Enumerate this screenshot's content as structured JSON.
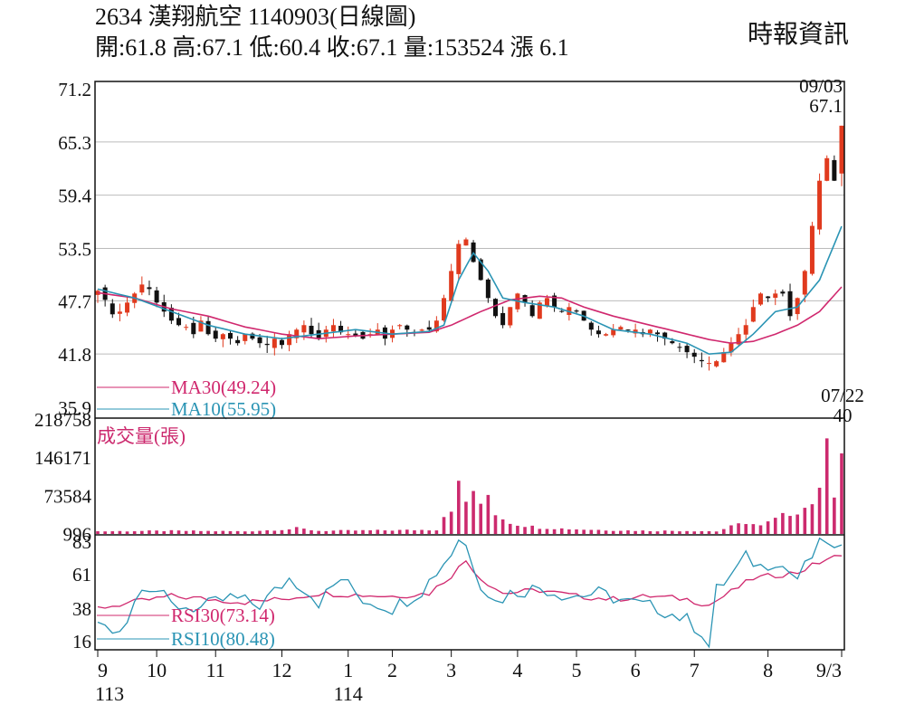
{
  "header": {
    "code": "2634",
    "name": "漢翔航空",
    "date": "1140903",
    "chart_kind": "(日線圖)",
    "ohlc_line": "開:61.8 高:67.1 低:60.4 收:67.1 量:153524 漲 6.1",
    "source": "時報資訊"
  },
  "colors": {
    "up": "#e03a1e",
    "down": "#111111",
    "ma30": "#d0286e",
    "ma10": "#2a94b4",
    "volume": "#cc2a6e",
    "rsi30": "#d0286e",
    "rsi10": "#2a94b4",
    "grid": "#bbbbbb"
  },
  "chart_data": [
    {
      "type": "candlestick",
      "panel": "price",
      "y_ticks": [
        "71.2",
        "65.3",
        "59.4",
        "53.5",
        "47.7",
        "41.8",
        "35.9"
      ],
      "ylim": [
        35.9,
        71.2
      ],
      "annotations": [
        {
          "date_label": "09/03",
          "value_label": "67.1",
          "x": 119,
          "y": 67.1,
          "position": "above"
        },
        {
          "date_label": "07/22",
          "value_label": "40",
          "x": 103.5,
          "y": 40,
          "position": "below"
        }
      ],
      "ma_legend": [
        {
          "label": "MA30(49.24)",
          "color": "#d0286e"
        },
        {
          "label": "MA10(55.95)",
          "color": "#2a94b4"
        }
      ],
      "close_anchors": [
        [
          0,
          48.8
        ],
        [
          1,
          47.8
        ],
        [
          2,
          46.2
        ],
        [
          3,
          46.5
        ],
        [
          4,
          47.5
        ],
        [
          5,
          48.5
        ],
        [
          6,
          49.5
        ],
        [
          7,
          49
        ],
        [
          8,
          47.5
        ],
        [
          9,
          46.5
        ],
        [
          10,
          45.5
        ],
        [
          11,
          45
        ],
        [
          12,
          44.8
        ],
        [
          13,
          44
        ],
        [
          14,
          45.5
        ],
        [
          15,
          44
        ],
        [
          16,
          43.5
        ],
        [
          17,
          44
        ],
        [
          18,
          43.5
        ],
        [
          19,
          43
        ],
        [
          20,
          44
        ],
        [
          21,
          43.5
        ],
        [
          22,
          43
        ],
        [
          23,
          42.8
        ],
        [
          24,
          43.5
        ],
        [
          25,
          42.8
        ],
        [
          26,
          44
        ],
        [
          27,
          44.5
        ],
        [
          28,
          45
        ],
        [
          29,
          44
        ],
        [
          30,
          43.5
        ],
        [
          31,
          44.5
        ],
        [
          32,
          45
        ],
        [
          33,
          44.2
        ],
        [
          34,
          44
        ],
        [
          35,
          43.8
        ],
        [
          36,
          43.5
        ],
        [
          37,
          44
        ],
        [
          38,
          44.5
        ],
        [
          39,
          43.5
        ],
        [
          40,
          44.5
        ],
        [
          41,
          45
        ],
        [
          42,
          44.5
        ],
        [
          43,
          44.2
        ],
        [
          44,
          44.5
        ],
        [
          45,
          44.5
        ],
        [
          46,
          45.5
        ],
        [
          47,
          48
        ],
        [
          48,
          51
        ],
        [
          49,
          54
        ],
        [
          50,
          54.5
        ],
        [
          51,
          52
        ],
        [
          52,
          50
        ],
        [
          53,
          48
        ],
        [
          54,
          46
        ],
        [
          55,
          45
        ],
        [
          56,
          47
        ],
        [
          57,
          48.5
        ],
        [
          58,
          47.5
        ],
        [
          59,
          46
        ],
        [
          60,
          47.5
        ],
        [
          61,
          48
        ],
        [
          62,
          47
        ],
        [
          63,
          46.5
        ],
        [
          64,
          47
        ],
        [
          65,
          46.5
        ],
        [
          66,
          45.5
        ],
        [
          67,
          44.5
        ],
        [
          68,
          44
        ],
        [
          69,
          44
        ],
        [
          70,
          44.5
        ],
        [
          71,
          44.8
        ],
        [
          72,
          44.5
        ],
        [
          73,
          44.5
        ],
        [
          74,
          44
        ],
        [
          75,
          44.5
        ],
        [
          76,
          44
        ],
        [
          77,
          43.5
        ],
        [
          78,
          43
        ],
        [
          79,
          42.5
        ],
        [
          80,
          42
        ],
        [
          81,
          41.5
        ],
        [
          82,
          41
        ],
        [
          83,
          40.8
        ],
        [
          84,
          41
        ],
        [
          85,
          42
        ],
        [
          86,
          43
        ],
        [
          87,
          44
        ],
        [
          88,
          45
        ],
        [
          89,
          47
        ],
        [
          90,
          48.5
        ],
        [
          91,
          48
        ],
        [
          92,
          48.5
        ],
        [
          93,
          48.5
        ],
        [
          94,
          46
        ],
        [
          95,
          48
        ],
        [
          96,
          51
        ],
        [
          97,
          56
        ],
        [
          98,
          61
        ],
        [
          99,
          63.5
        ],
        [
          100,
          61
        ],
        [
          101,
          67.1
        ]
      ],
      "ma30_anchors": [
        [
          0,
          48.6
        ],
        [
          5,
          48
        ],
        [
          10,
          46.8
        ],
        [
          15,
          46
        ],
        [
          20,
          44.8
        ],
        [
          25,
          44
        ],
        [
          30,
          43.5
        ],
        [
          35,
          43.8
        ],
        [
          40,
          44
        ],
        [
          45,
          44.2
        ],
        [
          48,
          45
        ],
        [
          52,
          46.5
        ],
        [
          56,
          47.8
        ],
        [
          60,
          48.2
        ],
        [
          63,
          48
        ],
        [
          66,
          47
        ],
        [
          70,
          46
        ],
        [
          75,
          45
        ],
        [
          80,
          44
        ],
        [
          83,
          43.4
        ],
        [
          86,
          43
        ],
        [
          89,
          43.2
        ],
        [
          92,
          44
        ],
        [
          95,
          45
        ],
        [
          98,
          46.5
        ],
        [
          101,
          49.24
        ]
      ],
      "ma10_anchors": [
        [
          0,
          49
        ],
        [
          5,
          48
        ],
        [
          10,
          46.5
        ],
        [
          15,
          45
        ],
        [
          20,
          44
        ],
        [
          25,
          43.5
        ],
        [
          30,
          44
        ],
        [
          35,
          44.5
        ],
        [
          40,
          44
        ],
        [
          45,
          44.3
        ],
        [
          47,
          45
        ],
        [
          49,
          50
        ],
        [
          51,
          53
        ],
        [
          53,
          51
        ],
        [
          55,
          48
        ],
        [
          58,
          47.5
        ],
        [
          62,
          47
        ],
        [
          66,
          46
        ],
        [
          70,
          44.5
        ],
        [
          75,
          44
        ],
        [
          80,
          43
        ],
        [
          83,
          41.8
        ],
        [
          86,
          42
        ],
        [
          89,
          44
        ],
        [
          92,
          46.5
        ],
        [
          95,
          47
        ],
        [
          98,
          50
        ],
        [
          101,
          55.95
        ]
      ]
    },
    {
      "type": "bar",
      "panel": "volume",
      "label": "成交量(張)",
      "y_ticks": [
        "218758",
        "146171",
        "73584",
        "996"
      ],
      "ylim": [
        0,
        218758
      ],
      "anchors": [
        [
          0,
          5000
        ],
        [
          10,
          6000
        ],
        [
          20,
          5000
        ],
        [
          26,
          9000
        ],
        [
          27,
          11000
        ],
        [
          30,
          6000
        ],
        [
          40,
          7000
        ],
        [
          46,
          8000
        ],
        [
          47,
          35000
        ],
        [
          48,
          50000
        ],
        [
          49,
          90000
        ],
        [
          50,
          60000
        ],
        [
          51,
          85000
        ],
        [
          52,
          50000
        ],
        [
          53,
          75000
        ],
        [
          54,
          40000
        ],
        [
          55,
          30000
        ],
        [
          56,
          22000
        ],
        [
          57,
          18000
        ],
        [
          60,
          12000
        ],
        [
          65,
          9000
        ],
        [
          70,
          7000
        ],
        [
          75,
          6000
        ],
        [
          80,
          6000
        ],
        [
          84,
          5000
        ],
        [
          86,
          14000
        ],
        [
          88,
          22000
        ],
        [
          90,
          15000
        ],
        [
          92,
          28000
        ],
        [
          94,
          40000
        ],
        [
          96,
          50000
        ],
        [
          98,
          75000
        ],
        [
          99,
          218758
        ],
        [
          100,
          80000
        ],
        [
          101,
          153524
        ]
      ]
    },
    {
      "type": "line",
      "panel": "rsi",
      "y_ticks": [
        "83",
        "61",
        "38",
        "16"
      ],
      "ylim": [
        10,
        86
      ],
      "series": [
        {
          "name": "RSI30(73.14)",
          "color": "#d0286e",
          "anchors": [
            [
              0,
              38
            ],
            [
              5,
              42
            ],
            [
              10,
              46
            ],
            [
              15,
              44
            ],
            [
              20,
              42
            ],
            [
              25,
              44
            ],
            [
              30,
              48
            ],
            [
              35,
              47
            ],
            [
              40,
              46
            ],
            [
              45,
              48
            ],
            [
              48,
              60
            ],
            [
              50,
              70
            ],
            [
              52,
              58
            ],
            [
              55,
              48
            ],
            [
              60,
              50
            ],
            [
              65,
              46
            ],
            [
              70,
              44
            ],
            [
              75,
              46
            ],
            [
              80,
              44
            ],
            [
              83,
              40
            ],
            [
              85,
              46
            ],
            [
              89,
              58
            ],
            [
              92,
              60
            ],
            [
              95,
              62
            ],
            [
              99,
              71
            ],
            [
              101,
              73.14
            ]
          ]
        },
        {
          "name": "RSI10(80.48)",
          "color": "#2a94b4",
          "anchors": [
            [
              0,
              28
            ],
            [
              2,
              22
            ],
            [
              4,
              30
            ],
            [
              6,
              55
            ],
            [
              8,
              50
            ],
            [
              10,
              40
            ],
            [
              14,
              38
            ],
            [
              18,
              45
            ],
            [
              22,
              40
            ],
            [
              26,
              58
            ],
            [
              28,
              52
            ],
            [
              30,
              42
            ],
            [
              33,
              58
            ],
            [
              36,
              44
            ],
            [
              40,
              38
            ],
            [
              44,
              50
            ],
            [
              48,
              75
            ],
            [
              49,
              85
            ],
            [
              50,
              80
            ],
            [
              52,
              55
            ],
            [
              54,
              42
            ],
            [
              56,
              48
            ],
            [
              60,
              52
            ],
            [
              64,
              46
            ],
            [
              68,
              48
            ],
            [
              72,
              42
            ],
            [
              76,
              38
            ],
            [
              80,
              30
            ],
            [
              82,
              22
            ],
            [
              83,
              12
            ],
            [
              84,
              50
            ],
            [
              86,
              60
            ],
            [
              88,
              72
            ],
            [
              90,
              66
            ],
            [
              92,
              70
            ],
            [
              95,
              58
            ],
            [
              98,
              80
            ],
            [
              99,
              84
            ],
            [
              100,
              76
            ],
            [
              101,
              80.48
            ]
          ]
        }
      ]
    },
    {
      "type": "axis",
      "panel": "time",
      "month_labels": [
        {
          "label": "9",
          "x": 0
        },
        {
          "label": "10",
          "x": 8
        },
        {
          "label": "11",
          "x": 16
        },
        {
          "label": "12",
          "x": 25
        },
        {
          "label": "1",
          "x": 34
        },
        {
          "label": "2",
          "x": 40
        },
        {
          "label": "3",
          "x": 48
        },
        {
          "label": "4",
          "x": 57
        },
        {
          "label": "5",
          "x": 65
        },
        {
          "label": "6",
          "x": 73
        },
        {
          "label": "7",
          "x": 81
        },
        {
          "label": "8",
          "x": 91
        },
        {
          "label": "9/3",
          "x": 101
        }
      ],
      "year_labels": [
        {
          "label": "113",
          "x": 0
        },
        {
          "label": "114",
          "x": 34
        }
      ]
    }
  ]
}
